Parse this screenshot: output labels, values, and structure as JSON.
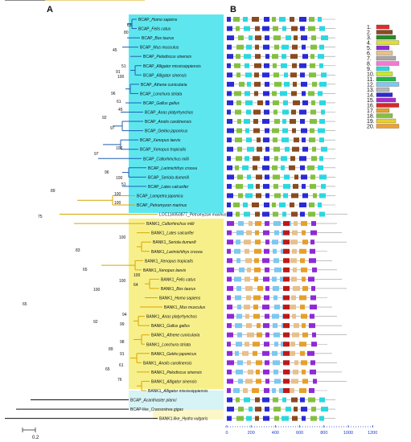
{
  "panels": {
    "a": "A",
    "b": "B"
  },
  "scale_bar": "0.2",
  "axis_ticks": [
    "0",
    "200",
    "400",
    "600",
    "800",
    "1000",
    "1200"
  ],
  "legend": [
    {
      "n": "1.",
      "color": "#e52b2b"
    },
    {
      "n": "2.",
      "color": "#8a4b1f"
    },
    {
      "n": "3.",
      "color": "#2a8a2a"
    },
    {
      "n": "4.",
      "color": "#dfe02a"
    },
    {
      "n": "5.",
      "color": "#8f2ad6"
    },
    {
      "n": "6.",
      "color": "#e7c08c"
    },
    {
      "n": "7.",
      "color": "#a8a8a8"
    },
    {
      "n": "8.",
      "color": "#f07bd0"
    },
    {
      "n": "9.",
      "color": "#2ad8e0"
    },
    {
      "n": "10.",
      "color": "#c8e82a"
    },
    {
      "n": "11.",
      "color": "#1fb84a"
    },
    {
      "n": "12.",
      "color": "#7cc8f0"
    },
    {
      "n": "13.",
      "color": "#b8b8b8"
    },
    {
      "n": "14.",
      "color": "#2a2ad6"
    },
    {
      "n": "15.",
      "color": "#b02ad0"
    },
    {
      "n": "16.",
      "color": "#d02a2a"
    },
    {
      "n": "17.",
      "color": "#e6a02a"
    },
    {
      "n": "18.",
      "color": "#84c040"
    },
    {
      "n": "19.",
      "color": "#e8d02a"
    },
    {
      "n": "20.",
      "color": "#f0a030"
    }
  ],
  "leaves": [
    {
      "prefix": "BCAP_",
      "name": "Homo sapiens"
    },
    {
      "prefix": "BCAP_",
      "name": "Felis catus"
    },
    {
      "prefix": "BCAP_",
      "name": "Bos taurus"
    },
    {
      "prefix": "BCAP_",
      "name": "Mus musculus"
    },
    {
      "prefix": "BCAP_",
      "name": "Pelodiscus sinensis"
    },
    {
      "prefix": "BCAP_",
      "name": "Alligator mississippiensis"
    },
    {
      "prefix": "BCAP_",
      "name": "Alligator sinensis"
    },
    {
      "prefix": "BCAP_",
      "name": "Athene cunicularia"
    },
    {
      "prefix": "BCAP_",
      "name": "Lonchura striata"
    },
    {
      "prefix": "BCAP_",
      "name": "Gallus gallus"
    },
    {
      "prefix": "BCAP_",
      "name": "Anas platyrhynchos"
    },
    {
      "prefix": "BCAP_",
      "name": "Anolis carolinensis"
    },
    {
      "prefix": "BCAP_",
      "name": "Gekko japonicus"
    },
    {
      "prefix": "BCAP_",
      "name": "Xenopus laevis"
    },
    {
      "prefix": "BCAP_",
      "name": "Xenopus tropicalis"
    },
    {
      "prefix": "BCAP_",
      "name": "Callorhinchus milii"
    },
    {
      "prefix": "BCAP_",
      "name": "Larimichthys crocea"
    },
    {
      "prefix": "BCAP_",
      "name": "Seriola dumerili"
    },
    {
      "prefix": "BCAP_",
      "name": "Lates calcarifer"
    },
    {
      "prefix": "BCAP_",
      "name": "Lampetra japonica"
    },
    {
      "prefix": "BCAP_",
      "name": "Petromyzon marinus"
    },
    {
      "prefix": "LOC116950877_",
      "name": "Petromyzon marinus"
    },
    {
      "prefix": "BANK1_",
      "name": "Callorhinchus milii"
    },
    {
      "prefix": "BANK1_",
      "name": "Lates calcarifer"
    },
    {
      "prefix": "BANK1_",
      "name": "Seriola dumerili"
    },
    {
      "prefix": "BANK1_",
      "name": "Larimichthys crocea"
    },
    {
      "prefix": "BANK1_",
      "name": "Xenopus tropicalis"
    },
    {
      "prefix": "BANK1_",
      "name": "Xenopus laevis"
    },
    {
      "prefix": "BANK1_",
      "name": "Felis catus"
    },
    {
      "prefix": "BANK1_",
      "name": "Bos taurus"
    },
    {
      "prefix": "BANK1_",
      "name": "Homo sapiens"
    },
    {
      "prefix": "BANK1_",
      "name": "Mus musculus"
    },
    {
      "prefix": "BANK1_",
      "name": "Anas platyrhynchos"
    },
    {
      "prefix": "BANK1_",
      "name": "Gallus gallus"
    },
    {
      "prefix": "BANK1_",
      "name": "Athene cunicularia"
    },
    {
      "prefix": "BANK1_",
      "name": "Lonchura striata"
    },
    {
      "prefix": "BANK1_",
      "name": "Gekko japonicus"
    },
    {
      "prefix": "BANK1_",
      "name": "Anolis carolinensis"
    },
    {
      "prefix": "BANK1_",
      "name": "Pelodiscus sinensis"
    },
    {
      "prefix": "BANK1_",
      "name": "Alligator sinensis"
    },
    {
      "prefix": "BANK1_",
      "name": "Alligator mississippiensis"
    },
    {
      "prefix": "BCAP_",
      "name": "Acanthaster planci"
    },
    {
      "prefix": "BCAP-like_",
      "name": "Crassostrea gigas"
    },
    {
      "prefix": "BANK1-like_",
      "name": "Hydra vulgaris"
    }
  ],
  "bootstrap": [
    "63",
    "80",
    "45",
    "51",
    "91",
    "100",
    "96",
    "61",
    "45",
    "92",
    "97",
    "97",
    "100",
    "100",
    "96",
    "100",
    "51",
    "100",
    "89",
    "75",
    "83",
    "100",
    "100",
    "65",
    "100",
    "64",
    "100",
    "92",
    "94",
    "99",
    "98",
    "61",
    "89",
    "91",
    "76",
    "65",
    "65"
  ]
}
